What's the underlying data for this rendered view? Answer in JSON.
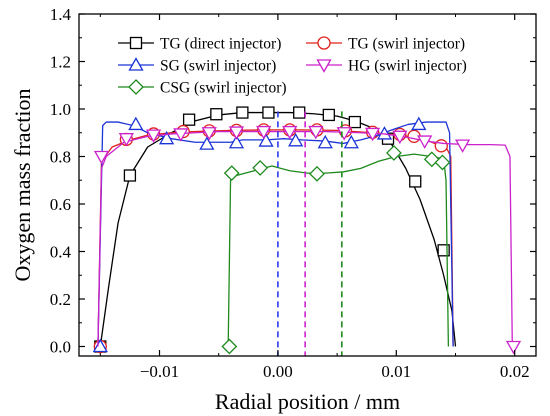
{
  "chart_data": {
    "type": "line",
    "xlabel": "Radial position / mm",
    "ylabel": "Oxygen mass fraction",
    "xlim": [
      -0.0168,
      0.0218
    ],
    "ylim": [
      -0.04,
      1.4
    ],
    "xticks": [
      -0.01,
      0.0,
      0.01,
      0.02
    ],
    "xtick_labels": [
      "−0.01",
      "0.00",
      "0.01",
      "0.02"
    ],
    "yticks": [
      0.0,
      0.2,
      0.4,
      0.6,
      0.8,
      1.0,
      1.2,
      1.4
    ],
    "ytick_labels": [
      "0.0",
      "0.2",
      "0.4",
      "0.6",
      "0.8",
      "1.0",
      "1.2",
      "1.4"
    ],
    "legend_position": "top-center",
    "series": [
      {
        "name": "TG (direct injector)",
        "color": "#000000",
        "marker": "square",
        "line": [
          [
            -0.015,
            0.0
          ],
          [
            -0.0143,
            0.25
          ],
          [
            -0.0135,
            0.52
          ],
          [
            -0.0125,
            0.72
          ],
          [
            -0.011,
            0.84
          ],
          [
            -0.009,
            0.9
          ],
          [
            -0.007,
            0.95
          ],
          [
            -0.005,
            0.975
          ],
          [
            -0.003,
            0.985
          ],
          [
            -0.001,
            0.985
          ],
          [
            0.001,
            0.985
          ],
          [
            0.003,
            0.98
          ],
          [
            0.005,
            0.97
          ],
          [
            0.0065,
            0.95
          ],
          [
            0.008,
            0.92
          ],
          [
            0.0095,
            0.86
          ],
          [
            0.0108,
            0.75
          ],
          [
            0.012,
            0.62
          ],
          [
            0.0132,
            0.45
          ],
          [
            0.014,
            0.3
          ],
          [
            0.0147,
            0.15
          ],
          [
            0.015,
            0.0
          ]
        ],
        "markers": [
          [
            -0.015,
            0.0
          ],
          [
            -0.0125,
            0.72
          ],
          [
            -0.0075,
            0.955
          ],
          [
            -0.0052,
            0.978
          ],
          [
            -0.003,
            0.985
          ],
          [
            -0.0008,
            0.985
          ],
          [
            0.0018,
            0.985
          ],
          [
            0.0043,
            0.975
          ],
          [
            0.0065,
            0.945
          ],
          [
            0.0093,
            0.875
          ],
          [
            0.0116,
            0.695
          ],
          [
            0.014,
            0.405
          ]
        ]
      },
      {
        "name": "TG (swirl injector)",
        "color": "#e0201b",
        "marker": "circle",
        "line": [
          [
            -0.0152,
            0.0
          ],
          [
            -0.0149,
            0.78
          ],
          [
            -0.014,
            0.84
          ],
          [
            -0.0125,
            0.87
          ],
          [
            -0.011,
            0.89
          ],
          [
            -0.009,
            0.9
          ],
          [
            -0.007,
            0.905
          ],
          [
            -0.004,
            0.91
          ],
          [
            -0.001,
            0.912
          ],
          [
            0.002,
            0.912
          ],
          [
            0.005,
            0.91
          ],
          [
            0.008,
            0.9
          ],
          [
            0.01,
            0.89
          ],
          [
            0.012,
            0.88
          ],
          [
            0.0135,
            0.85
          ],
          [
            0.0143,
            0.83
          ],
          [
            0.0146,
            0.8
          ],
          [
            0.0148,
            0.0
          ]
        ],
        "markers": [
          [
            -0.015,
            0.0
          ],
          [
            -0.0128,
            0.872
          ],
          [
            -0.0105,
            0.895
          ],
          [
            -0.008,
            0.905
          ],
          [
            -0.0058,
            0.908
          ],
          [
            -0.0035,
            0.91
          ],
          [
            -0.0012,
            0.912
          ],
          [
            0.001,
            0.912
          ],
          [
            0.0033,
            0.912
          ],
          [
            0.0057,
            0.908
          ],
          [
            0.008,
            0.902
          ],
          [
            0.0103,
            0.893
          ],
          [
            0.0115,
            0.885
          ],
          [
            0.0138,
            0.845
          ]
        ]
      },
      {
        "name": "SG (swirl injector)",
        "color": "#1c34d8",
        "marker": "triangle-up",
        "line": [
          [
            -0.0152,
            0.0
          ],
          [
            -0.0148,
            0.93
          ],
          [
            -0.0145,
            0.945
          ],
          [
            -0.0135,
            0.945
          ],
          [
            -0.0122,
            0.93
          ],
          [
            -0.011,
            0.9
          ],
          [
            -0.009,
            0.875
          ],
          [
            -0.007,
            0.86
          ],
          [
            -0.005,
            0.86
          ],
          [
            -0.004,
            0.86
          ],
          [
            -0.003,
            0.87
          ],
          [
            -0.001,
            0.87
          ],
          [
            0.0005,
            0.875
          ],
          [
            0.002,
            0.87
          ],
          [
            0.004,
            0.865
          ],
          [
            0.0055,
            0.855
          ],
          [
            0.007,
            0.87
          ],
          [
            0.0085,
            0.89
          ],
          [
            0.0095,
            0.91
          ],
          [
            0.011,
            0.935
          ],
          [
            0.0125,
            0.945
          ],
          [
            0.0142,
            0.945
          ],
          [
            0.0145,
            0.9
          ],
          [
            0.0148,
            0.0
          ]
        ],
        "markers": [
          [
            -0.015,
            0.0
          ],
          [
            -0.012,
            0.935
          ],
          [
            -0.0094,
            0.875
          ],
          [
            -0.006,
            0.852
          ],
          [
            -0.0035,
            0.858
          ],
          [
            -0.001,
            0.865
          ],
          [
            0.0015,
            0.866
          ],
          [
            0.004,
            0.858
          ],
          [
            0.0062,
            0.858
          ],
          [
            0.009,
            0.895
          ],
          [
            0.0119,
            0.935
          ]
        ]
      },
      {
        "name": "HG (swirl injector)",
        "color": "#cc22cc",
        "marker": "triangle-down",
        "line": [
          [
            -0.0152,
            0.0
          ],
          [
            -0.0149,
            0.75
          ],
          [
            -0.0145,
            0.8
          ],
          [
            -0.013,
            0.86
          ],
          [
            -0.011,
            0.885
          ],
          [
            -0.009,
            0.895
          ],
          [
            -0.007,
            0.9
          ],
          [
            -0.005,
            0.905
          ],
          [
            -0.002,
            0.905
          ],
          [
            0.001,
            0.905
          ],
          [
            0.004,
            0.905
          ],
          [
            0.007,
            0.9
          ],
          [
            0.009,
            0.895
          ],
          [
            0.011,
            0.88
          ],
          [
            0.0125,
            0.865
          ],
          [
            0.014,
            0.855
          ],
          [
            0.016,
            0.85
          ],
          [
            0.018,
            0.85
          ],
          [
            0.0192,
            0.848
          ],
          [
            0.0196,
            0.8
          ],
          [
            0.0198,
            0.0
          ]
        ],
        "markers": [
          [
            -0.0149,
            0.8
          ],
          [
            -0.0128,
            0.875
          ],
          [
            -0.0105,
            0.89
          ],
          [
            -0.0082,
            0.895
          ],
          [
            -0.0058,
            0.9
          ],
          [
            -0.0035,
            0.903
          ],
          [
            -0.0012,
            0.905
          ],
          [
            0.001,
            0.905
          ],
          [
            0.0032,
            0.905
          ],
          [
            0.0056,
            0.9
          ],
          [
            0.008,
            0.897
          ],
          [
            0.0103,
            0.885
          ],
          [
            0.0124,
            0.865
          ],
          [
            0.0156,
            0.848
          ],
          [
            0.0199,
            0.0
          ]
        ]
      },
      {
        "name": "CSG (swirl injector)",
        "color": "#1e8a1e",
        "marker": "diamond",
        "line": [
          [
            -0.0042,
            0.0
          ],
          [
            -0.004,
            0.7
          ],
          [
            -0.0035,
            0.72
          ],
          [
            -0.002,
            0.74
          ],
          [
            -0.0005,
            0.76
          ],
          [
            0.001,
            0.74
          ],
          [
            0.0025,
            0.73
          ],
          [
            0.004,
            0.73
          ],
          [
            0.0055,
            0.735
          ],
          [
            0.007,
            0.75
          ],
          [
            0.0085,
            0.78
          ],
          [
            0.01,
            0.8
          ],
          [
            0.0115,
            0.81
          ],
          [
            0.013,
            0.8
          ],
          [
            0.014,
            0.79
          ],
          [
            0.0142,
            0.7
          ],
          [
            0.0144,
            0.0
          ]
        ],
        "markers": [
          [
            -0.0041,
            0.0
          ],
          [
            -0.0039,
            0.73
          ],
          [
            -0.0015,
            0.752
          ],
          [
            0.0033,
            0.727
          ],
          [
            0.0098,
            0.815
          ],
          [
            0.013,
            0.788
          ],
          [
            0.0139,
            0.775
          ]
        ]
      }
    ],
    "vertical_lines": [
      {
        "x": 0.0,
        "color": "#2b3df0"
      },
      {
        "x": 0.0023,
        "color": "#cc22cc"
      },
      {
        "x": 0.0054,
        "color": "#1e8a1e"
      }
    ]
  }
}
